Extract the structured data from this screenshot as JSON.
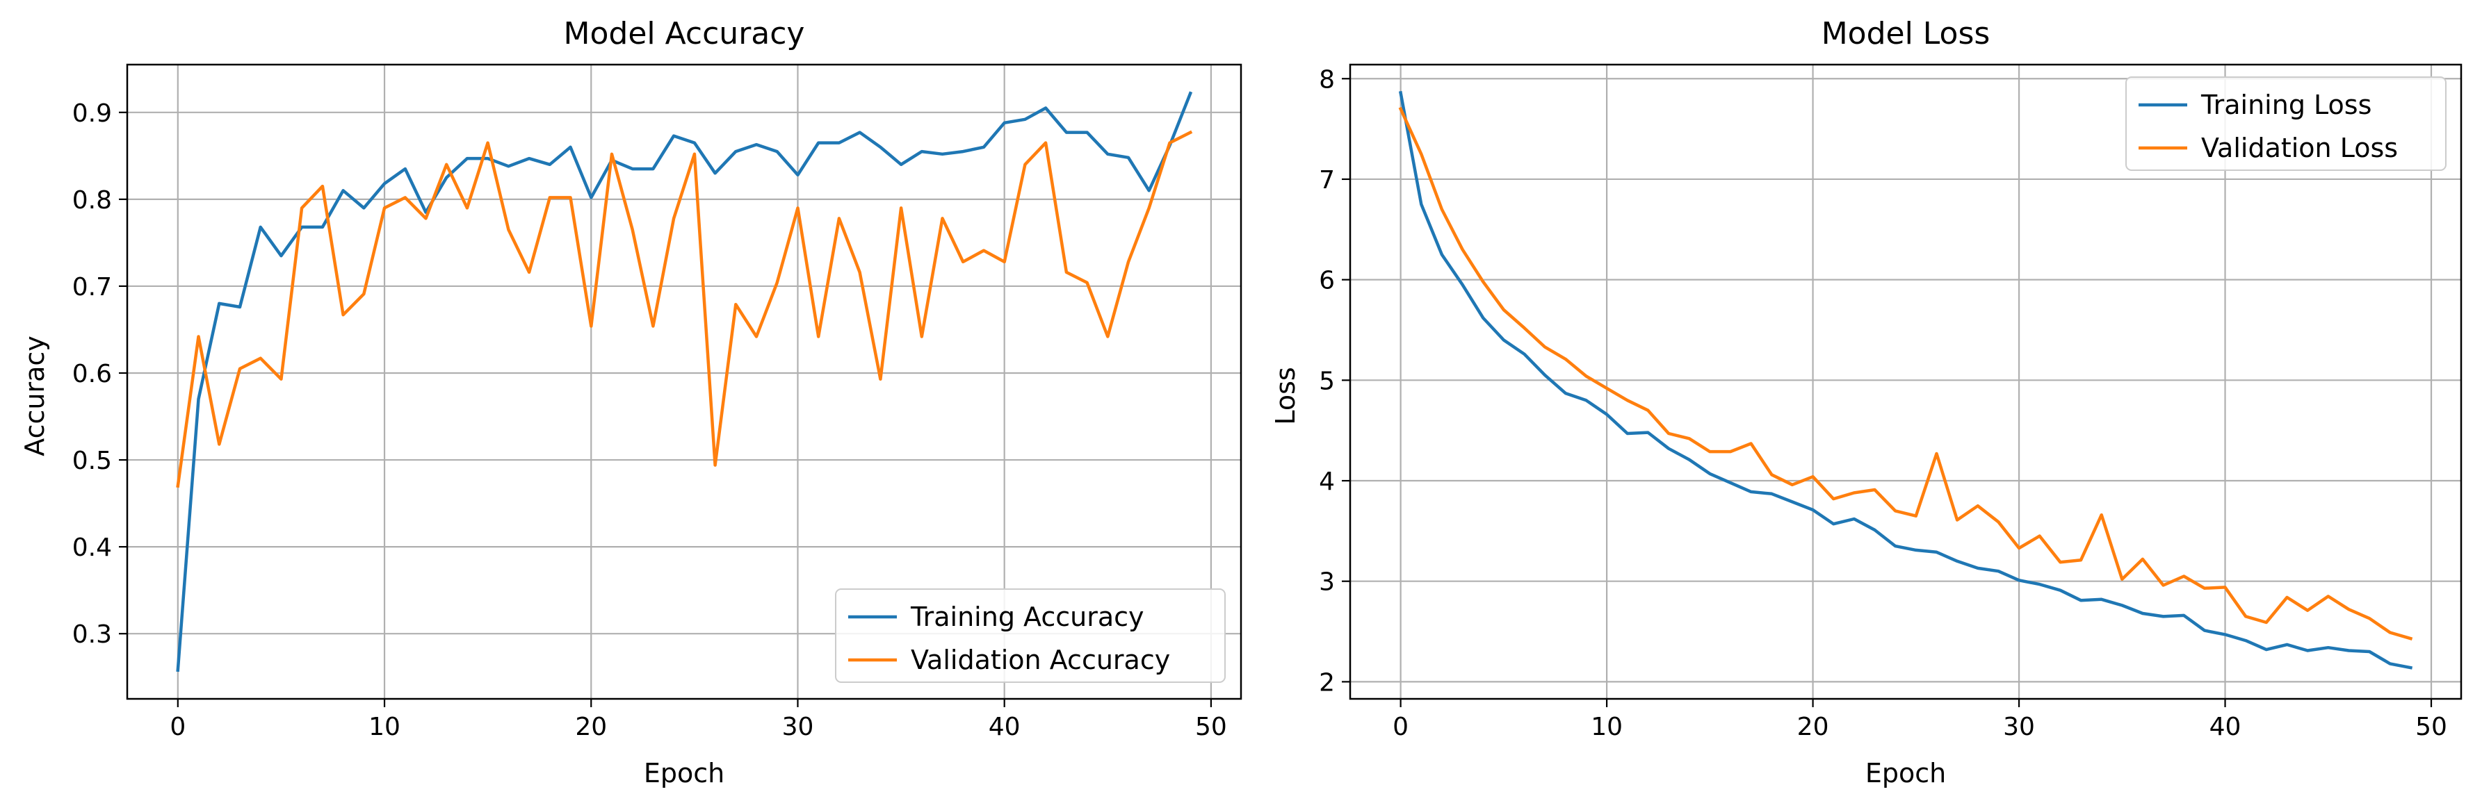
{
  "chart_data": [
    {
      "type": "line",
      "title": "Model Accuracy",
      "xlabel": "Epoch",
      "ylabel": "Accuracy",
      "xlim": [
        -2.45,
        51.45
      ],
      "ylim": [
        0.225,
        0.955
      ],
      "xticks": [
        0,
        10,
        20,
        30,
        40,
        50
      ],
      "yticks": [
        0.3,
        0.4,
        0.5,
        0.6,
        0.7,
        0.8,
        0.9
      ],
      "ytick_labels": [
        "0.3",
        "0.4",
        "0.5",
        "0.6",
        "0.7",
        "0.8",
        "0.9"
      ],
      "grid": true,
      "legend_position": "lower right",
      "x": [
        0,
        1,
        2,
        3,
        4,
        5,
        6,
        7,
        8,
        9,
        10,
        11,
        12,
        13,
        14,
        15,
        16,
        17,
        18,
        19,
        20,
        21,
        22,
        23,
        24,
        25,
        26,
        27,
        28,
        29,
        30,
        31,
        32,
        33,
        34,
        35,
        36,
        37,
        38,
        39,
        40,
        41,
        42,
        43,
        44,
        45,
        46,
        47,
        48,
        49
      ],
      "series": [
        {
          "name": "Training Accuracy",
          "color": "#1f77b4",
          "values": [
            0.258,
            0.57,
            0.68,
            0.676,
            0.768,
            0.735,
            0.768,
            0.768,
            0.81,
            0.79,
            0.818,
            0.835,
            0.785,
            0.825,
            0.847,
            0.847,
            0.838,
            0.847,
            0.84,
            0.86,
            0.802,
            0.845,
            0.835,
            0.835,
            0.873,
            0.865,
            0.83,
            0.855,
            0.863,
            0.855,
            0.828,
            0.865,
            0.865,
            0.877,
            0.86,
            0.84,
            0.855,
            0.852,
            0.855,
            0.86,
            0.888,
            0.892,
            0.905,
            0.877,
            0.877,
            0.852,
            0.848,
            0.81,
            0.862,
            0.922
          ]
        },
        {
          "name": "Validation Accuracy",
          "color": "#ff7f0e",
          "values": [
            0.47,
            0.642,
            0.518,
            0.605,
            0.617,
            0.593,
            0.79,
            0.815,
            0.667,
            0.691,
            0.79,
            0.802,
            0.778,
            0.84,
            0.79,
            0.865,
            0.765,
            0.716,
            0.802,
            0.802,
            0.654,
            0.852,
            0.765,
            0.654,
            0.778,
            0.852,
            0.494,
            0.679,
            0.642,
            0.704,
            0.79,
            0.642,
            0.778,
            0.716,
            0.593,
            0.79,
            0.642,
            0.778,
            0.728,
            0.741,
            0.728,
            0.84,
            0.865,
            0.716,
            0.704,
            0.642,
            0.728,
            0.79,
            0.865,
            0.877
          ]
        }
      ]
    },
    {
      "type": "line",
      "title": "Model Loss",
      "xlabel": "Epoch",
      "ylabel": "Loss",
      "xlim": [
        -2.45,
        51.45
      ],
      "ylim": [
        1.83,
        8.14
      ],
      "xticks": [
        0,
        10,
        20,
        30,
        40,
        50
      ],
      "yticks": [
        2,
        3,
        4,
        5,
        6,
        7,
        8
      ],
      "ytick_labels": [
        "2",
        "3",
        "4",
        "5",
        "6",
        "7",
        "8"
      ],
      "grid": true,
      "legend_position": "upper right",
      "x": [
        0,
        1,
        2,
        3,
        4,
        5,
        6,
        7,
        8,
        9,
        10,
        11,
        12,
        13,
        14,
        15,
        16,
        17,
        18,
        19,
        20,
        21,
        22,
        23,
        24,
        25,
        26,
        27,
        28,
        29,
        30,
        31,
        32,
        33,
        34,
        35,
        36,
        37,
        38,
        39,
        40,
        41,
        42,
        43,
        44,
        45,
        46,
        47,
        48,
        49
      ],
      "series": [
        {
          "name": "Training Loss",
          "color": "#1f77b4",
          "values": [
            7.86,
            6.75,
            6.25,
            5.95,
            5.62,
            5.4,
            5.26,
            5.05,
            4.87,
            4.8,
            4.66,
            4.47,
            4.48,
            4.32,
            4.21,
            4.07,
            3.98,
            3.89,
            3.87,
            3.79,
            3.71,
            3.57,
            3.62,
            3.51,
            3.35,
            3.31,
            3.29,
            3.2,
            3.13,
            3.1,
            3.01,
            2.97,
            2.91,
            2.81,
            2.82,
            2.76,
            2.68,
            2.65,
            2.66,
            2.51,
            2.47,
            2.41,
            2.32,
            2.37,
            2.31,
            2.34,
            2.31,
            2.3,
            2.18,
            2.14
          ]
        },
        {
          "name": "Validation Loss",
          "color": "#ff7f0e",
          "values": [
            7.7,
            7.25,
            6.7,
            6.3,
            5.98,
            5.7,
            5.52,
            5.33,
            5.21,
            5.04,
            4.92,
            4.8,
            4.7,
            4.47,
            4.42,
            4.29,
            4.29,
            4.37,
            4.06,
            3.96,
            4.04,
            3.82,
            3.88,
            3.91,
            3.7,
            3.65,
            4.27,
            3.61,
            3.75,
            3.59,
            3.33,
            3.45,
            3.19,
            3.21,
            3.66,
            3.02,
            3.22,
            2.96,
            3.05,
            2.93,
            2.94,
            2.65,
            2.59,
            2.84,
            2.71,
            2.85,
            2.72,
            2.63,
            2.49,
            2.43
          ]
        }
      ]
    }
  ]
}
